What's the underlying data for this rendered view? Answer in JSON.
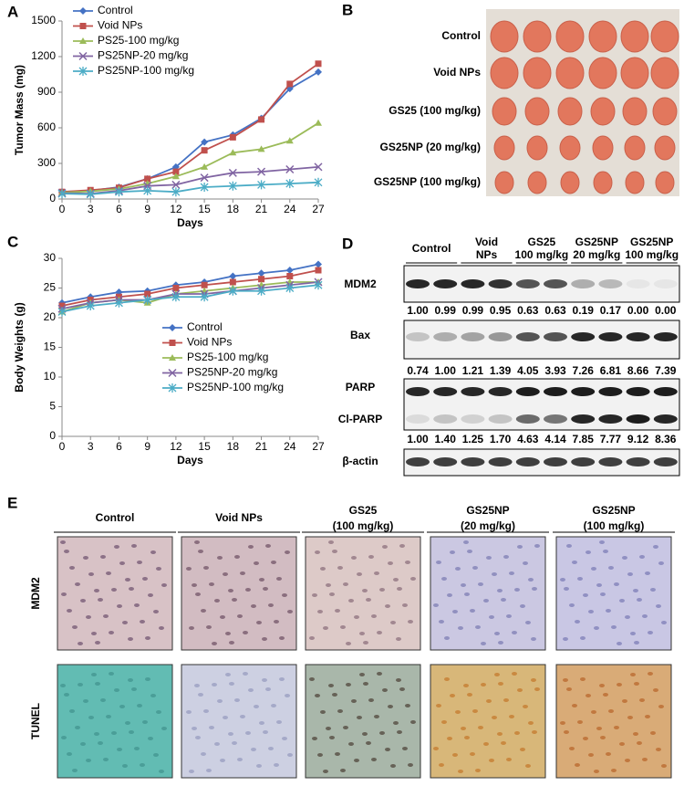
{
  "panel_labels": [
    "A",
    "B",
    "C",
    "D",
    "E"
  ],
  "chart_data": [
    {
      "type": "line",
      "ylabel": "Tumor Mass (mg)",
      "xlabel": "Days",
      "x": [
        0,
        3,
        6,
        9,
        12,
        15,
        18,
        21,
        24,
        27
      ],
      "xlim": [
        0,
        27
      ],
      "xticks": [
        0,
        3,
        6,
        9,
        12,
        15,
        18,
        21,
        24,
        27
      ],
      "ylim": [
        0,
        1500
      ],
      "yticks": [
        0,
        300,
        600,
        900,
        1200,
        1500
      ],
      "legend": "top-left",
      "series": [
        {
          "name": "Control",
          "color": "#4472c4",
          "marker": "diamond",
          "values": [
            60,
            70,
            100,
            170,
            270,
            480,
            540,
            680,
            930,
            1070
          ]
        },
        {
          "name": "Void NPs",
          "color": "#c0504d",
          "marker": "square",
          "values": [
            60,
            75,
            95,
            170,
            230,
            410,
            520,
            670,
            970,
            1140
          ]
        },
        {
          "name": "PS25-100 mg/kg",
          "color": "#9bbb59",
          "marker": "triangle",
          "values": [
            55,
            65,
            85,
            130,
            190,
            270,
            390,
            420,
            490,
            640
          ]
        },
        {
          "name": "PS25NP-20 mg/kg",
          "color": "#8064a2",
          "marker": "x",
          "values": [
            50,
            45,
            70,
            110,
            120,
            180,
            220,
            230,
            250,
            270
          ]
        },
        {
          "name": "PS25NP-100 mg/kg",
          "color": "#4bacc6",
          "marker": "star",
          "values": [
            45,
            40,
            60,
            70,
            60,
            100,
            110,
            120,
            130,
            140
          ]
        }
      ]
    },
    {
      "type": "line",
      "ylabel": "Body Weights (g)",
      "xlabel": "Days",
      "x": [
        0,
        3,
        6,
        9,
        12,
        15,
        18,
        21,
        24,
        27
      ],
      "xlim": [
        0,
        27
      ],
      "xticks": [
        0,
        3,
        6,
        9,
        12,
        15,
        18,
        21,
        24,
        27
      ],
      "ylim": [
        0,
        30
      ],
      "yticks": [
        0,
        5,
        10,
        15,
        20,
        25,
        30
      ],
      "legend": "middle-center",
      "series": [
        {
          "name": "Control",
          "color": "#4472c4",
          "marker": "diamond",
          "values": [
            22.5,
            23.5,
            24.3,
            24.5,
            25.5,
            26,
            27,
            27.5,
            28,
            29
          ]
        },
        {
          "name": "Void NPs",
          "color": "#c0504d",
          "marker": "square",
          "values": [
            22,
            23,
            23.5,
            24,
            25,
            25.5,
            26,
            26.5,
            27,
            28
          ]
        },
        {
          "name": "PS25-100 mg/kg",
          "color": "#9bbb59",
          "marker": "triangle",
          "values": [
            21,
            22.5,
            23,
            22.5,
            24,
            24.5,
            25,
            25.5,
            26,
            26
          ]
        },
        {
          "name": "PS25NP-20 mg/kg",
          "color": "#8064a2",
          "marker": "x",
          "values": [
            21.5,
            22.5,
            23,
            23,
            24,
            24,
            24.5,
            25,
            25.5,
            26
          ]
        },
        {
          "name": "PS25NP-100 mg/kg",
          "color": "#4bacc6",
          "marker": "star",
          "values": [
            21,
            22,
            22.5,
            23,
            23.5,
            23.5,
            24.5,
            24.5,
            25,
            25.5
          ]
        }
      ]
    }
  ],
  "tumor_photos": {
    "rows": [
      "Control",
      "Void NPs",
      "GS25  (100 mg/kg)",
      "GS25NP (20 mg/kg)",
      "GS25NP (100 mg/kg)"
    ]
  },
  "western_blot": {
    "groups": [
      [
        "Control"
      ],
      [
        "Void",
        "NPs"
      ],
      [
        "GS25",
        "100 mg/kg"
      ],
      [
        "GS25NP",
        "20 mg/kg"
      ],
      [
        "GS25NP",
        "100 mg/kg"
      ]
    ],
    "rows": [
      {
        "label": "MDM2",
        "quant": [
          "1.00",
          "0.99",
          "0.99",
          "0.95",
          "0.63",
          "0.63",
          "0.19",
          "0.17",
          "0.00",
          "0.00"
        ]
      },
      {
        "label": "Bax",
        "quant": [
          "0.74",
          "1.00",
          "1.21",
          "1.39",
          "4.05",
          "3.93",
          "7.26",
          "6.81",
          "8.66",
          "7.39"
        ]
      },
      {
        "label": "PARP",
        "sublabel": "Cl-PARP",
        "quant": [
          "1.00",
          "1.40",
          "1.25",
          "1.70",
          "4.63",
          "4.14",
          "7.85",
          "7.77",
          "9.12",
          "8.36"
        ]
      },
      {
        "label": "β-actin"
      }
    ]
  },
  "ihc": {
    "columns": [
      [
        "Control"
      ],
      [
        "Void NPs"
      ],
      [
        "GS25",
        "(100 mg/kg)"
      ],
      [
        "GS25NP",
        "(20 mg/kg)"
      ],
      [
        "GS25NP",
        "(100 mg/kg)"
      ]
    ],
    "rows": [
      "MDM2",
      "TUNEL"
    ]
  }
}
